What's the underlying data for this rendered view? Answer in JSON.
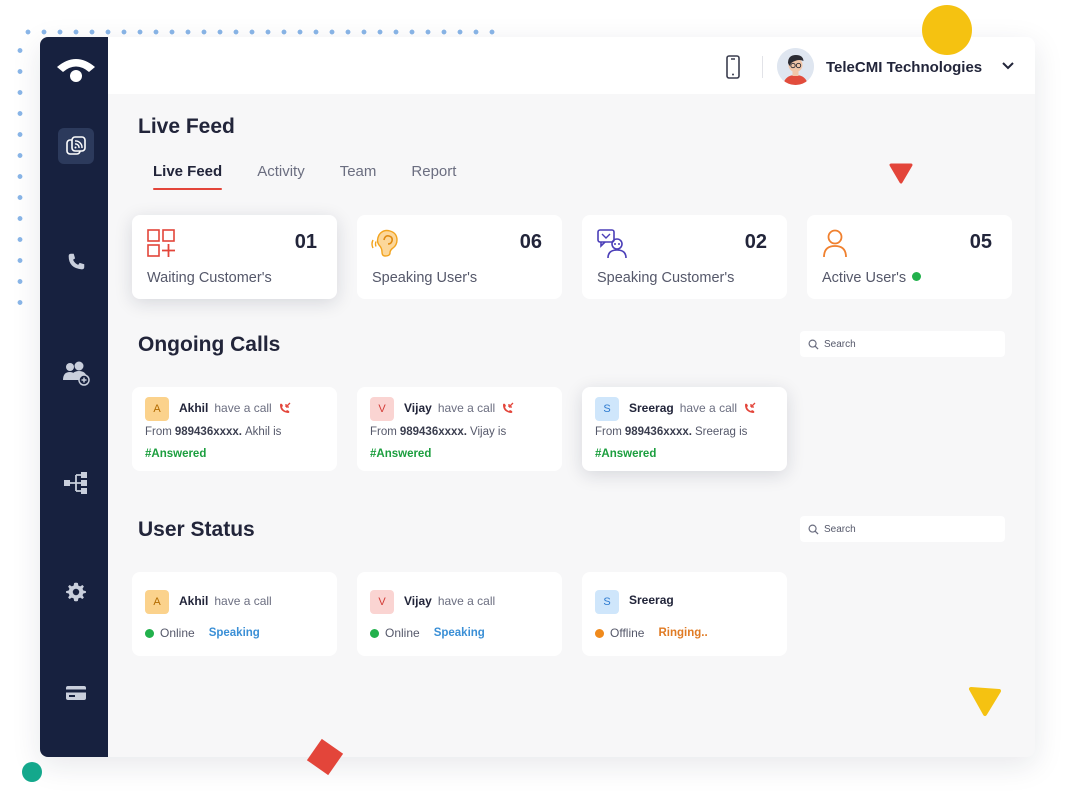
{
  "colors": {
    "sidebar": "#17213f",
    "accent_red": "#e3453a",
    "online": "#22b14c",
    "offline": "#f08a1c",
    "answered": "#1b9e3e",
    "speaking": "#3a8fd6",
    "ringing": "#e07b24"
  },
  "sidebar": {
    "items": [
      {
        "icon": "live-feed-icon",
        "active": true
      },
      {
        "icon": "phone-icon"
      },
      {
        "icon": "users-icon"
      },
      {
        "icon": "call-flow-icon"
      },
      {
        "icon": "gear-icon"
      },
      {
        "icon": "billing-card-icon"
      }
    ]
  },
  "topbar": {
    "company_name": "TeleCMI Technologies",
    "device_icon": "mobile-phone-icon"
  },
  "page": {
    "title": "Live Feed"
  },
  "tabs": [
    {
      "label": "Live Feed",
      "active": true
    },
    {
      "label": "Activity"
    },
    {
      "label": "Team"
    },
    {
      "label": "Report"
    }
  ],
  "stats": [
    {
      "icon": "waiting-grid-icon",
      "value": "01",
      "label": "Waiting Customer's"
    },
    {
      "icon": "ear-icon",
      "value": "06",
      "label": "Speaking User's"
    },
    {
      "icon": "customer-chat-icon",
      "value": "02",
      "label": "Speaking Customer's"
    },
    {
      "icon": "user-icon",
      "value": "05",
      "label": "Active User's"
    }
  ],
  "ongoing_calls": {
    "title": "Ongoing Calls",
    "search_placeholder": "Search",
    "calls": [
      {
        "initial": "A",
        "name": "Akhil",
        "action": "have a call",
        "from_label": "From",
        "number": "989436xxxx.",
        "note": "Akhil is",
        "tag": "#Answered"
      },
      {
        "initial": "V",
        "name": "Vijay",
        "action": "have a call",
        "from_label": "From",
        "number": "989436xxxx.",
        "note": "Vijay is",
        "tag": "#Answered"
      },
      {
        "initial": "S",
        "name": "Sreerag",
        "action": "have a call",
        "from_label": "From",
        "number": "989436xxxx.",
        "note": "Sreerag is",
        "tag": "#Answered"
      }
    ]
  },
  "user_status": {
    "title": "User Status",
    "search_placeholder": "Search",
    "users": [
      {
        "initial": "A",
        "name": "Akhil",
        "action": "have a call",
        "status": "Online",
        "activity": "Speaking"
      },
      {
        "initial": "V",
        "name": "Vijay",
        "action": "have a call",
        "status": "Online",
        "activity": "Speaking"
      },
      {
        "initial": "S",
        "name": "Sreerag",
        "action": "",
        "status": "Offline",
        "activity": "Ringing.."
      }
    ]
  }
}
